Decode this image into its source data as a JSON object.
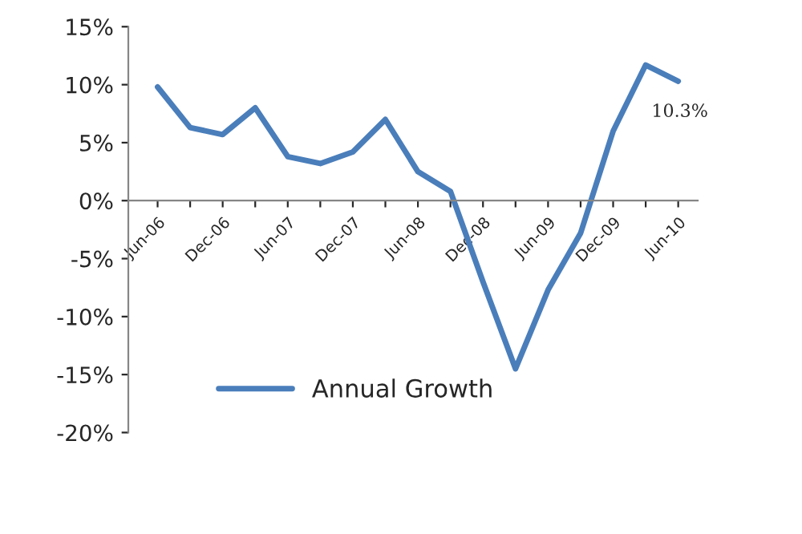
{
  "chart_data": {
    "type": "line",
    "categories": [
      "Jun-06",
      null,
      "Dec-06",
      null,
      "Jun-07",
      null,
      "Dec-07",
      null,
      "Jun-08",
      null,
      "Dec-08",
      null,
      "Jun-09",
      null,
      "Dec-09",
      null,
      "Jun-10"
    ],
    "series": [
      {
        "name": "Annual Growth",
        "color": "#4a7ebb",
        "values": [
          9.8,
          6.3,
          5.7,
          8.0,
          3.8,
          3.2,
          4.2,
          7.0,
          2.5,
          0.8,
          -7.0,
          -14.5,
          -7.7,
          -2.8,
          6.0,
          11.7,
          10.3
        ],
        "value_labels": [
          null,
          null,
          null,
          null,
          null,
          null,
          null,
          null,
          null,
          null,
          null,
          null,
          null,
          null,
          null,
          null,
          "10.3%"
        ]
      }
    ],
    "ylim": [
      -20,
      15
    ],
    "yticks": [
      {
        "value": -20,
        "label": "-20%"
      },
      {
        "value": -15,
        "label": "-15%"
      },
      {
        "value": -10,
        "label": "-10%"
      },
      {
        "value": -5,
        "label": "-5%"
      },
      {
        "value": 0,
        "label": "0%"
      },
      {
        "value": 5,
        "label": "5%"
      },
      {
        "value": 10,
        "label": "10%"
      },
      {
        "value": 15,
        "label": "15%"
      }
    ],
    "grid": false,
    "legend": "bottom",
    "marker": "none",
    "line_style": "solid"
  }
}
